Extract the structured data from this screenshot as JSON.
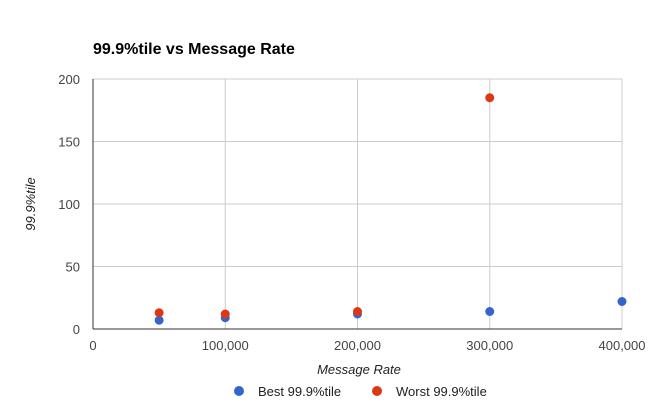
{
  "chart_data": {
    "type": "scatter",
    "title": "99.9%tile vs Message Rate",
    "xlabel": "Message Rate",
    "ylabel": "99.9%tile",
    "xlim": [
      0,
      400000
    ],
    "ylim": [
      0,
      200
    ],
    "x_ticks": [
      0,
      100000,
      200000,
      300000,
      400000
    ],
    "x_tick_labels": [
      "0",
      "100,000",
      "200,000",
      "300,000",
      "400,000"
    ],
    "y_ticks": [
      0,
      50,
      100,
      150,
      200
    ],
    "y_tick_labels": [
      "0",
      "50",
      "100",
      "150",
      "200"
    ],
    "grid": true,
    "legend_position": "bottom",
    "series": [
      {
        "name": "Best 99.9%tile",
        "color": "#3366cc",
        "points": [
          {
            "x": 50000,
            "y": 7
          },
          {
            "x": 100000,
            "y": 9
          },
          {
            "x": 200000,
            "y": 12
          },
          {
            "x": 300000,
            "y": 14
          },
          {
            "x": 400000,
            "y": 22
          }
        ]
      },
      {
        "name": "Worst 99.9%tile",
        "color": "#dc3912",
        "points": [
          {
            "x": 50000,
            "y": 13
          },
          {
            "x": 100000,
            "y": 12
          },
          {
            "x": 200000,
            "y": 14
          },
          {
            "x": 300000,
            "y": 185
          }
        ]
      }
    ]
  }
}
